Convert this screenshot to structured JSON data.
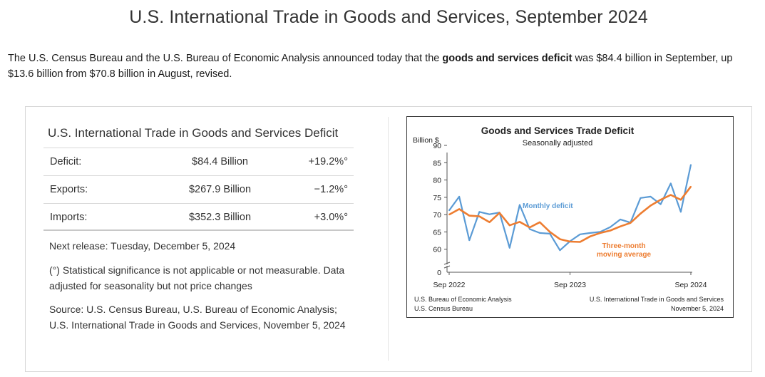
{
  "page": {
    "title": "U.S. International Trade in Goods and Services, September 2024",
    "intro_before": "The U.S. Census Bureau and the U.S. Bureau of Economic Analysis announced today that the ",
    "intro_bold": "goods and services deficit",
    "intro_after": " was $84.4 billion in September, up $13.6 billion from $70.8 billion in August, revised."
  },
  "summary_table": {
    "title": "U.S. International Trade in Goods and Services Deficit",
    "rows": [
      {
        "label": "Deficit:",
        "value": "$84.4 Billion",
        "change": "+19.2%°"
      },
      {
        "label": "Exports:",
        "value": "$267.9 Billion",
        "change": "−1.2%°"
      },
      {
        "label": "Imports:",
        "value": "$352.3 Billion",
        "change": "+3.0%°"
      }
    ],
    "next_release": "Next release: Tuesday, December 5, 2024",
    "footnote": "(°) Statistical significance is not applicable or not measurable. Data adjusted for seasonality but not price changes",
    "source": "Source: U.S. Census Bureau, U.S. Bureau of Economic Analysis; U.S. International Trade in Goods and Services, November 5, 2024"
  },
  "chart_data": {
    "type": "line",
    "title": "Goods and Services Trade Deficit",
    "subtitle": "Seasonally adjusted",
    "ylabel": "Billion $",
    "ylim": [
      55,
      90
    ],
    "yticks": [
      60,
      65,
      70,
      75,
      80,
      85,
      90
    ],
    "ybreak_label": "0",
    "x_tick_labels": [
      "Sep 2022",
      "Sep 2023",
      "Sep 2024"
    ],
    "x": [
      "Sep 2022",
      "Oct 2022",
      "Nov 2022",
      "Dec 2022",
      "Jan 2023",
      "Feb 2023",
      "Mar 2023",
      "Apr 2023",
      "May 2023",
      "Jun 2023",
      "Jul 2023",
      "Aug 2023",
      "Sep 2023",
      "Oct 2023",
      "Nov 2023",
      "Dec 2023",
      "Jan 2024",
      "Feb 2024",
      "Mar 2024",
      "Apr 2024",
      "May 2024",
      "Jun 2024",
      "Jul 2024",
      "Aug 2024",
      "Sep 2024"
    ],
    "series": [
      {
        "name": "Monthly deficit",
        "color": "#5b9bd5",
        "values": [
          71.2,
          75.2,
          62.6,
          70.8,
          70.1,
          70.6,
          60.4,
          72.8,
          65.8,
          64.7,
          64.5,
          59.7,
          62.3,
          64.3,
          64.7,
          65.0,
          66.4,
          68.6,
          67.7,
          74.8,
          75.2,
          73.0,
          79.0,
          70.8,
          84.4
        ]
      },
      {
        "name": "Three-month moving average",
        "color": "#ed7d31",
        "values": [
          70.0,
          71.6,
          69.7,
          69.5,
          67.8,
          70.5,
          66.9,
          67.9,
          66.3,
          67.8,
          65.0,
          62.9,
          62.2,
          62.1,
          63.7,
          64.7,
          65.4,
          66.6,
          67.6,
          70.3,
          72.6,
          74.3,
          75.7,
          74.3,
          78.1
        ]
      }
    ],
    "series_labels": {
      "monthly": "Monthly deficit",
      "avg_line1": "Three-month",
      "avg_line2": "moving average"
    },
    "footer_left_1": "U.S. Bureau of Economic Analysis",
    "footer_left_2": "U.S. Census Bureau",
    "footer_right_1": "U.S. International Trade in Goods and Services",
    "footer_right_2": "November 5, 2024",
    "grid": false,
    "axis_color": "#555555"
  }
}
